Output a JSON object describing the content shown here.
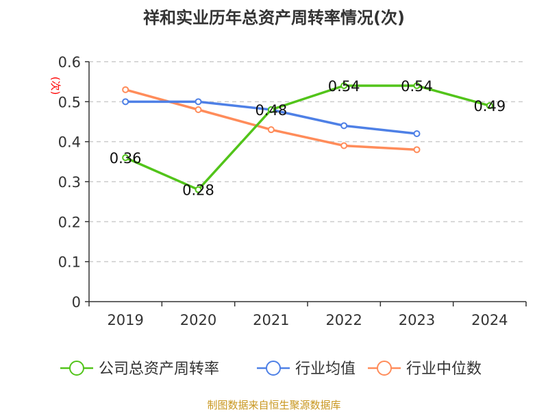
{
  "chart_data": {
    "type": "line",
    "title": "祥和实业历年总资产周转率情况(次)",
    "ylabel": "(次)",
    "categories": [
      "2019",
      "2020",
      "2021",
      "2022",
      "2023",
      "2024"
    ],
    "ylim": [
      0,
      0.6
    ],
    "yticks": [
      "0",
      "0.1",
      "0.2",
      "0.3",
      "0.4",
      "0.5",
      "0.6"
    ],
    "grid": true,
    "legend_position": "bottom",
    "series": [
      {
        "name": "公司总资产周转率",
        "color": "#52c41a",
        "values": [
          0.36,
          0.28,
          0.48,
          0.54,
          0.54,
          0.49
        ],
        "labels": [
          "0.36",
          "0.28",
          "0.48",
          "0.54",
          "0.54",
          "0.49"
        ]
      },
      {
        "name": "行业均值",
        "color": "#4e80e6",
        "values": [
          0.5,
          0.5,
          0.48,
          0.44,
          0.42,
          null
        ]
      },
      {
        "name": "行业中位数",
        "color": "#ff8c5a",
        "values": [
          0.53,
          0.48,
          0.43,
          0.39,
          0.38,
          null
        ]
      }
    ]
  },
  "source": "制图数据来自恒生聚源数据库"
}
